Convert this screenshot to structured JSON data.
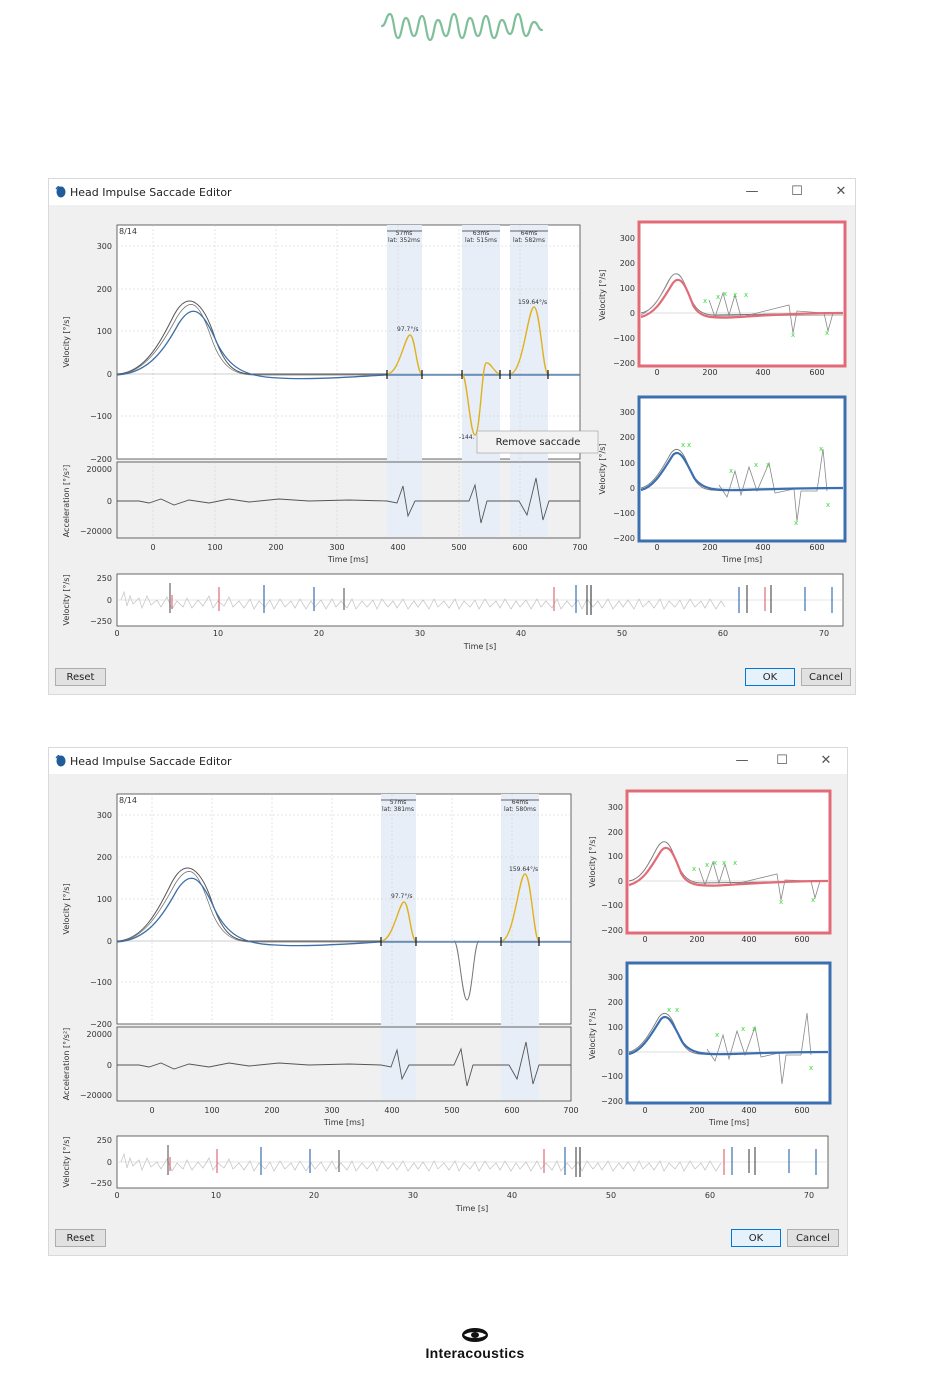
{
  "brand": {
    "name": "Interacoustics"
  },
  "windows": [
    {
      "id": "w1",
      "title": "Head Impulse Saccade Editor",
      "counter": "8/14",
      "saccade_labels": [
        {
          "dur": "57ms",
          "lat": "lat: 352ms"
        },
        {
          "dur": "63ms",
          "lat": "lat: 515ms"
        },
        {
          "dur": "64ms",
          "lat": "lat: 582ms"
        }
      ],
      "peak_labels": [
        "97.7°/s",
        "159.64°/s",
        "-144."
      ],
      "context_menu": "Remove saccade",
      "axes": {
        "velocity": "Velocity [°/s]",
        "acceleration": "Acceleration [°/s²]",
        "time_ms": "Time [ms]",
        "time_s": "Time [s]"
      },
      "ticks": {
        "vel_y": [
          "300",
          "200",
          "100",
          "0",
          "−100",
          "−200"
        ],
        "acc_y": [
          "20000",
          "0",
          "−20000"
        ],
        "time_ms_x": [
          "0",
          "100",
          "200",
          "300",
          "400",
          "500",
          "600",
          "700"
        ],
        "small_y": [
          "300",
          "200",
          "100",
          "0",
          "−100",
          "−200"
        ],
        "small_x": [
          "0",
          "200",
          "400",
          "600"
        ],
        "overview_y": [
          "250",
          "0",
          "−250"
        ],
        "overview_x": [
          "0",
          "10",
          "20",
          "30",
          "40",
          "50",
          "60",
          "70"
        ]
      },
      "buttons": {
        "reset": "Reset",
        "ok": "OK",
        "cancel": "Cancel"
      }
    },
    {
      "id": "w2",
      "title": "Head Impulse Saccade Editor",
      "counter": "8/14",
      "saccade_labels": [
        {
          "dur": "57ms",
          "lat": "lat: 381ms"
        },
        {
          "dur": "64ms",
          "lat": "lat: 580ms"
        }
      ],
      "peak_labels": [
        "97.7°/s",
        "159.64°/s"
      ],
      "axes": {
        "velocity": "Velocity [°/s]",
        "acceleration": "Acceleration [°/s²]",
        "time_ms": "Time [ms]",
        "time_s": "Time [s]"
      },
      "ticks": {
        "vel_y": [
          "300",
          "200",
          "100",
          "0",
          "−100",
          "−200"
        ],
        "acc_y": [
          "20000",
          "0",
          "−20000"
        ],
        "time_ms_x": [
          "0",
          "100",
          "200",
          "300",
          "400",
          "500",
          "600",
          "700"
        ],
        "small_y": [
          "300",
          "200",
          "100",
          "0",
          "−100",
          "−200"
        ],
        "small_x": [
          "0",
          "200",
          "400",
          "600"
        ],
        "overview_y": [
          "250",
          "0",
          "−250"
        ],
        "overview_x": [
          "0",
          "10",
          "20",
          "30",
          "40",
          "50",
          "60",
          "70"
        ]
      },
      "buttons": {
        "reset": "Reset",
        "ok": "OK",
        "cancel": "Cancel"
      }
    }
  ],
  "colors": {
    "head": "#3d6fa8",
    "eye": "#666666",
    "saccade": "#e0b11e",
    "shade": "#e8eef7",
    "left_frame": "#e36b77",
    "right_frame": "#3b6fb0",
    "marker": "#33dd33",
    "logo_wave": "#7fbf9a"
  }
}
